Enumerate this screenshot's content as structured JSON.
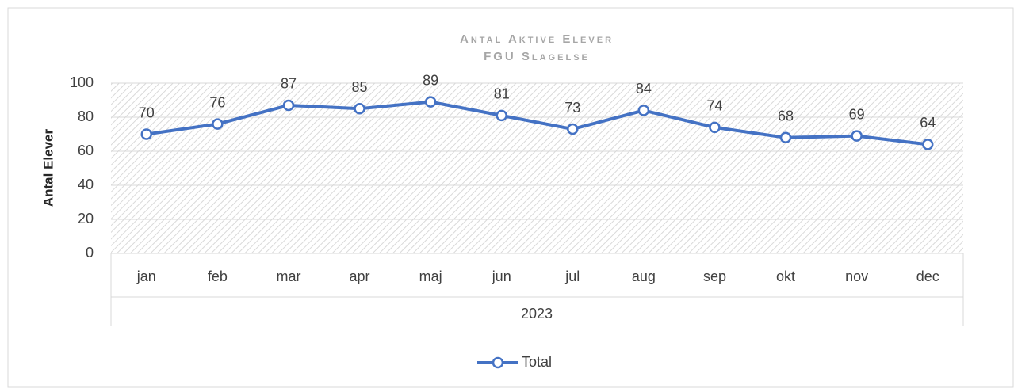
{
  "chart_data": {
    "type": "line",
    "title": "Antal Aktive Elever",
    "subtitle": "FGU Slagelse",
    "ylabel": "Antal Elever",
    "xlabel": "2023",
    "categories": [
      "jan",
      "feb",
      "mar",
      "apr",
      "maj",
      "jun",
      "jul",
      "aug",
      "sep",
      "okt",
      "nov",
      "dec"
    ],
    "series": [
      {
        "name": "Total",
        "color": "#4472c4",
        "values": [
          70,
          76,
          87,
          85,
          89,
          81,
          73,
          84,
          74,
          68,
          69,
          64
        ]
      }
    ],
    "ylim": [
      0,
      100
    ],
    "yticks": [
      0,
      20,
      40,
      60,
      80,
      100
    ],
    "grid": true,
    "legend": "bottom"
  }
}
